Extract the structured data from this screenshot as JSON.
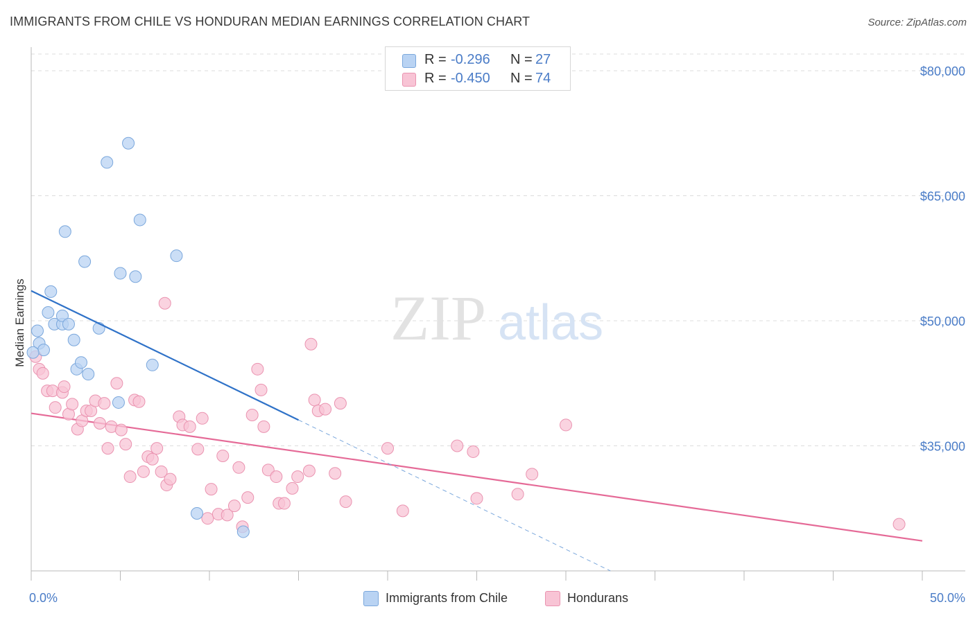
{
  "title": "IMMIGRANTS FROM CHILE VS HONDURAN MEDIAN EARNINGS CORRELATION CHART",
  "source": "Source: ZipAtlas.com",
  "watermark": {
    "zip": "ZIP",
    "atlas": "atlas"
  },
  "colors": {
    "blue_fill": "#b9d3f3",
    "blue_stroke": "#7aa7dc",
    "blue_line": "#2f72c8",
    "pink_fill": "#f8c4d5",
    "pink_stroke": "#ea93b0",
    "pink_line": "#e56a97",
    "tick_text": "#4a7cc7",
    "grid": "#dcdcdc"
  },
  "legend": {
    "rows": [
      {
        "r_label": "R =",
        "r_value": "-0.296",
        "n_label": "N =",
        "n_value": "27",
        "color": "#b9d3f3",
        "border": "#7aa7dc"
      },
      {
        "r_label": "R =",
        "r_value": "-0.450",
        "n_label": "N =",
        "n_value": "74",
        "color": "#f8c4d5",
        "border": "#ea93b0"
      }
    ]
  },
  "bottom_legend": [
    {
      "label": "Immigrants from Chile",
      "color": "#b9d3f3",
      "border": "#7aa7dc"
    },
    {
      "label": "Hondurans",
      "color": "#f8c4d5",
      "border": "#ea93b0"
    }
  ],
  "chart_data": {
    "type": "scatter",
    "title": "IMMIGRANTS FROM CHILE VS HONDURAN MEDIAN EARNINGS CORRELATION CHART",
    "xlabel": "",
    "ylabel": "Median Earnings",
    "xlim": [
      0,
      50
    ],
    "ylim": [
      20000,
      82000
    ],
    "x_tick_labels": [
      {
        "value": 0,
        "label": "0.0%"
      },
      {
        "value": 50,
        "label": "50.0%"
      }
    ],
    "y_ticks": [
      {
        "value": 35000,
        "label": "$35,000"
      },
      {
        "value": 50000,
        "label": "$50,000"
      },
      {
        "value": 65000,
        "label": "$65,000"
      },
      {
        "value": 80000,
        "label": "$80,000"
      }
    ],
    "grid": true,
    "legend_position": "top-center",
    "series": [
      {
        "name": "Immigrants from Chile",
        "color": "#b9d3f3",
        "points": [
          [
            0.35,
            48800
          ],
          [
            0.45,
            47300
          ],
          [
            0.7,
            46500
          ],
          [
            0.95,
            51000
          ],
          [
            1.1,
            53500
          ],
          [
            1.3,
            49600
          ],
          [
            1.75,
            49600
          ],
          [
            1.75,
            50600
          ],
          [
            1.9,
            60700
          ],
          [
            2.1,
            49600
          ],
          [
            2.4,
            47700
          ],
          [
            2.55,
            44200
          ],
          [
            2.8,
            45000
          ],
          [
            3.0,
            57100
          ],
          [
            3.2,
            43600
          ],
          [
            3.8,
            49100
          ],
          [
            4.25,
            69000
          ],
          [
            4.9,
            40200
          ],
          [
            5.0,
            55700
          ],
          [
            5.45,
            71300
          ],
          [
            5.85,
            55300
          ],
          [
            6.1,
            62100
          ],
          [
            6.8,
            44700
          ],
          [
            8.15,
            57800
          ],
          [
            9.3,
            26900
          ],
          [
            11.9,
            24700
          ],
          [
            0.1,
            46200
          ]
        ],
        "trend": {
          "x": [
            0,
            15
          ],
          "y": [
            53600,
            38100
          ],
          "dashed_to": {
            "x": 32.5,
            "y": 20000
          }
        }
      },
      {
        "name": "Hondurans",
        "color": "#f8c4d5",
        "points": [
          [
            0.25,
            45700
          ],
          [
            0.45,
            44200
          ],
          [
            0.65,
            43700
          ],
          [
            0.9,
            41600
          ],
          [
            1.2,
            41600
          ],
          [
            1.35,
            39600
          ],
          [
            1.75,
            41400
          ],
          [
            1.85,
            42100
          ],
          [
            2.1,
            38800
          ],
          [
            2.3,
            40000
          ],
          [
            2.6,
            37000
          ],
          [
            2.85,
            38000
          ],
          [
            3.1,
            39200
          ],
          [
            3.35,
            39200
          ],
          [
            3.6,
            40400
          ],
          [
            3.85,
            37700
          ],
          [
            4.1,
            40100
          ],
          [
            4.3,
            34700
          ],
          [
            4.5,
            37300
          ],
          [
            4.8,
            42500
          ],
          [
            5.05,
            36900
          ],
          [
            5.3,
            35200
          ],
          [
            5.55,
            31300
          ],
          [
            5.8,
            40500
          ],
          [
            6.05,
            40300
          ],
          [
            6.3,
            31900
          ],
          [
            6.55,
            33700
          ],
          [
            6.8,
            33400
          ],
          [
            7.05,
            34700
          ],
          [
            7.3,
            31900
          ],
          [
            7.6,
            30300
          ],
          [
            7.8,
            31000
          ],
          [
            7.5,
            52100
          ],
          [
            8.3,
            38500
          ],
          [
            8.5,
            37500
          ],
          [
            8.9,
            37300
          ],
          [
            9.35,
            34600
          ],
          [
            9.6,
            38300
          ],
          [
            9.9,
            26300
          ],
          [
            10.1,
            29800
          ],
          [
            10.5,
            26800
          ],
          [
            10.75,
            33800
          ],
          [
            11.0,
            26700
          ],
          [
            11.4,
            27800
          ],
          [
            11.65,
            32400
          ],
          [
            11.85,
            25300
          ],
          [
            12.15,
            28800
          ],
          [
            12.4,
            38700
          ],
          [
            12.7,
            44200
          ],
          [
            12.9,
            41700
          ],
          [
            13.05,
            37300
          ],
          [
            13.3,
            32100
          ],
          [
            13.75,
            31300
          ],
          [
            13.9,
            28100
          ],
          [
            14.2,
            28100
          ],
          [
            14.65,
            29900
          ],
          [
            14.95,
            31300
          ],
          [
            15.6,
            32000
          ],
          [
            15.7,
            47200
          ],
          [
            15.9,
            40500
          ],
          [
            16.1,
            39200
          ],
          [
            16.5,
            39400
          ],
          [
            17.05,
            31700
          ],
          [
            17.35,
            40100
          ],
          [
            17.65,
            28300
          ],
          [
            20.0,
            34700
          ],
          [
            20.85,
            27200
          ],
          [
            23.9,
            35000
          ],
          [
            24.8,
            34300
          ],
          [
            25.0,
            28700
          ],
          [
            27.3,
            29200
          ],
          [
            28.1,
            31600
          ],
          [
            30.0,
            37500
          ],
          [
            48.7,
            25600
          ]
        ],
        "trend": {
          "x": [
            0,
            50
          ],
          "y": [
            38900,
            23600
          ]
        }
      }
    ]
  }
}
